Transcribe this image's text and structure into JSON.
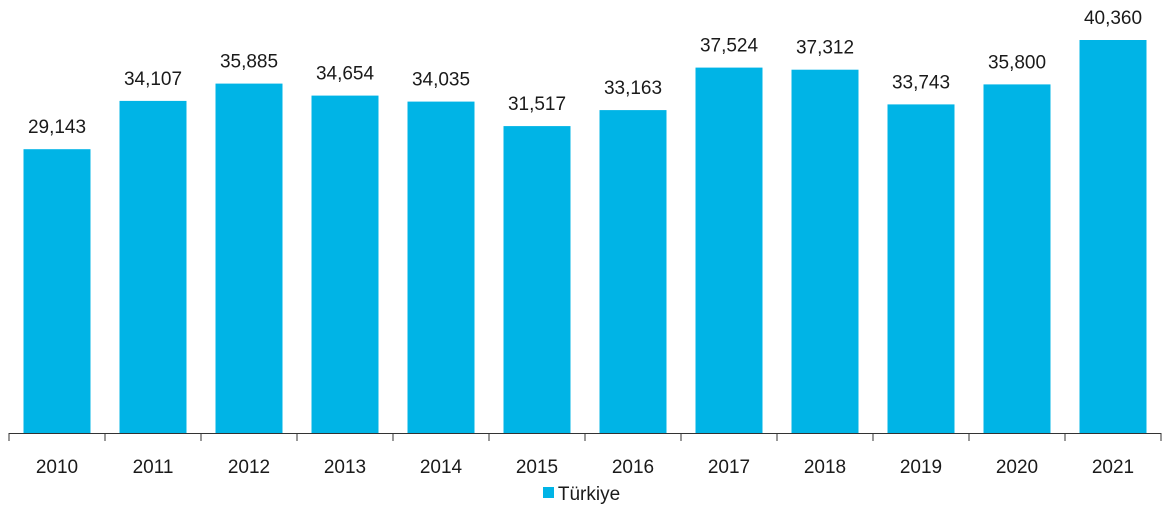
{
  "chart_data": {
    "type": "bar",
    "categories": [
      "2010",
      "2011",
      "2012",
      "2013",
      "2014",
      "2015",
      "2016",
      "2017",
      "2018",
      "2019",
      "2020",
      "2021"
    ],
    "series": [
      {
        "name": "Türkiye",
        "values": [
          29143,
          34107,
          35885,
          34654,
          34035,
          31517,
          33163,
          37524,
          37312,
          33743,
          35800,
          40360
        ],
        "labels": [
          "29,143",
          "34,107",
          "35,885",
          "34,654",
          "34,035",
          "31,517",
          "33,163",
          "37,524",
          "37,312",
          "33,743",
          "35,800",
          "40,360"
        ]
      }
    ],
    "title": "",
    "xlabel": "",
    "ylabel": "",
    "ylim": [
      0,
      40360
    ],
    "grid": false,
    "legend_position": "bottom-center",
    "colors": {
      "bar": "#00b4e6",
      "axis": "#333333",
      "text": "#1a1a1a"
    }
  }
}
